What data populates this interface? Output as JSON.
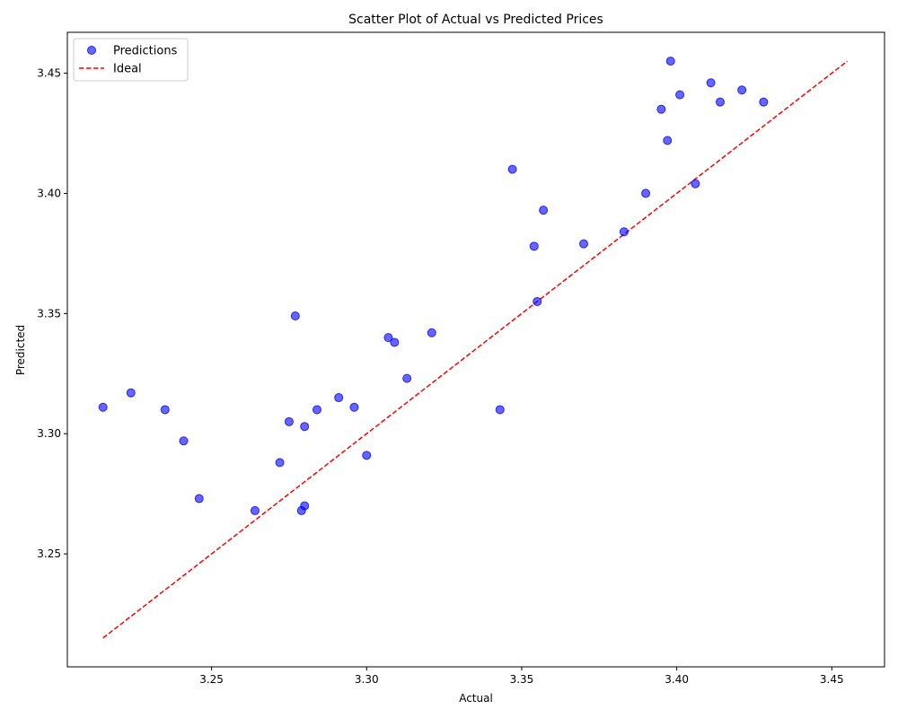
{
  "chart_data": {
    "type": "scatter",
    "title": "Scatter Plot of Actual vs Predicted Prices",
    "xlabel": "Actual",
    "ylabel": "Predicted",
    "xlim": [
      3.2035,
      3.467
    ],
    "ylim": [
      3.203,
      3.467
    ],
    "xticks": [
      3.25,
      3.3,
      3.35,
      3.4,
      3.45
    ],
    "yticks": [
      3.25,
      3.3,
      3.35,
      3.4,
      3.45
    ],
    "xtick_labels": [
      "3.25",
      "3.30",
      "3.35",
      "3.40",
      "3.45"
    ],
    "ytick_labels": [
      "3.25",
      "3.30",
      "3.35",
      "3.40",
      "3.45"
    ],
    "grid": false,
    "legend": {
      "position": "top-left",
      "entries": [
        "Predictions",
        "Ideal"
      ]
    },
    "series": [
      {
        "name": "Predictions",
        "kind": "scatter",
        "color": "#0000ff",
        "points": [
          [
            3.215,
            3.311
          ],
          [
            3.224,
            3.317
          ],
          [
            3.235,
            3.31
          ],
          [
            3.241,
            3.297
          ],
          [
            3.246,
            3.273
          ],
          [
            3.264,
            3.268
          ],
          [
            3.272,
            3.288
          ],
          [
            3.275,
            3.305
          ],
          [
            3.277,
            3.349
          ],
          [
            3.279,
            3.268
          ],
          [
            3.28,
            3.27
          ],
          [
            3.28,
            3.303
          ],
          [
            3.284,
            3.31
          ],
          [
            3.291,
            3.315
          ],
          [
            3.296,
            3.311
          ],
          [
            3.3,
            3.291
          ],
          [
            3.307,
            3.34
          ],
          [
            3.309,
            3.338
          ],
          [
            3.313,
            3.323
          ],
          [
            3.321,
            3.342
          ],
          [
            3.343,
            3.31
          ],
          [
            3.347,
            3.41
          ],
          [
            3.354,
            3.378
          ],
          [
            3.355,
            3.355
          ],
          [
            3.357,
            3.393
          ],
          [
            3.37,
            3.379
          ],
          [
            3.383,
            3.384
          ],
          [
            3.39,
            3.4
          ],
          [
            3.395,
            3.435
          ],
          [
            3.397,
            3.422
          ],
          [
            3.398,
            3.455
          ],
          [
            3.401,
            3.441
          ],
          [
            3.406,
            3.404
          ],
          [
            3.411,
            3.446
          ],
          [
            3.414,
            3.438
          ],
          [
            3.421,
            3.443
          ],
          [
            3.428,
            3.438
          ]
        ]
      },
      {
        "name": "Ideal",
        "kind": "line",
        "color": "#ff0000",
        "dash": "dashed",
        "points": [
          [
            3.215,
            3.215
          ],
          [
            3.455,
            3.455
          ]
        ]
      }
    ]
  }
}
